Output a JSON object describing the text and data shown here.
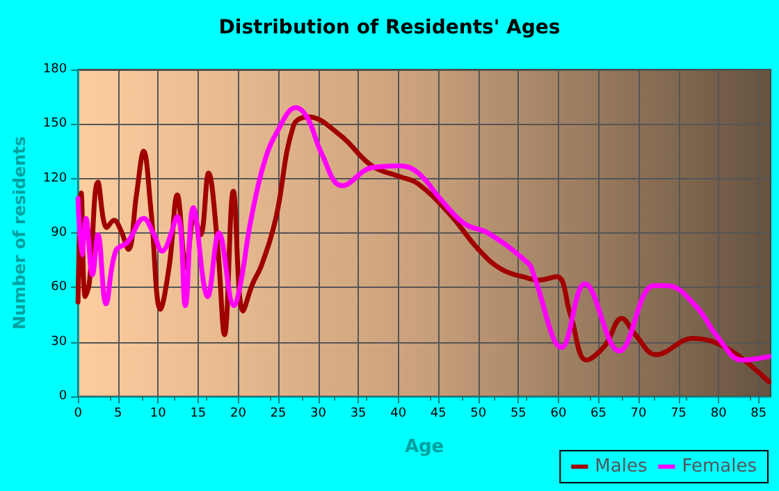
{
  "chart_data": {
    "type": "line",
    "title": "Distribution of Residents' Ages",
    "xlabel": "Age",
    "ylabel": "Number of residents",
    "xlim": [
      0,
      86.5
    ],
    "xticks": [
      0,
      5,
      10,
      15,
      20,
      25,
      30,
      35,
      40,
      45,
      50,
      55,
      60,
      65,
      70,
      75,
      80,
      85
    ],
    "ylim": [
      0,
      180
    ],
    "yticks": [
      0,
      30,
      60,
      90,
      120,
      150,
      180
    ],
    "grid": true,
    "legend": "bottom right",
    "series": [
      {
        "name": "Males",
        "color": "#a00000",
        "x": [
          0,
          0.4,
          0.9,
          1.4,
          2.5,
          3.6,
          4.5,
          5.3,
          6.3,
          7.3,
          8.2,
          9.1,
          10.3,
          11.4,
          12.4,
          13.5,
          14.5,
          15.3,
          16.3,
          17.4,
          18.3,
          19.4,
          20.6,
          21.8,
          22.9,
          24.7,
          26.9,
          28.7,
          32.7,
          36.7,
          40.2,
          42.5,
          46.5,
          50,
          52.9,
          56.3,
          57.5,
          59.8,
          61.5,
          63.5,
          65.8,
          67.9,
          69.6,
          72.2,
          76.8,
          79.4,
          82.3,
          86.3
        ],
        "values": [
          52,
          112,
          55,
          62,
          118,
          93,
          97,
          92,
          81,
          111,
          135,
          103,
          48,
          72,
          111,
          71,
          99,
          89,
          123,
          85,
          34,
          113,
          47,
          62,
          72,
          98,
          149,
          154,
          144,
          127,
          121,
          117,
          100,
          81,
          70,
          65,
          64,
          66,
          45,
          20,
          28,
          43,
          34,
          23,
          32,
          30,
          23,
          8
        ]
      },
      {
        "name": "Females",
        "color": "#ff00ff",
        "x": [
          0,
          0.5,
          1,
          1.8,
          2.5,
          3.5,
          4.7,
          6.2,
          8.2,
          9.4,
          10.5,
          12.4,
          13.4,
          14.4,
          16.2,
          17.6,
          19.5,
          20.3,
          21.5,
          23.2,
          24.9,
          27.2,
          28.7,
          30.4,
          33,
          36.7,
          40.2,
          42.5,
          45.4,
          48.3,
          51.2,
          56.3,
          56.9,
          60.4,
          63.3,
          67.6,
          71.9,
          73.6,
          77.1,
          80,
          82.9,
          86.3
        ],
        "values": [
          109,
          78,
          98,
          67,
          89,
          51,
          80,
          85,
          98,
          90,
          80,
          99,
          50,
          104,
          55,
          90,
          50,
          62,
          95,
          128,
          146,
          159,
          153,
          134,
          116,
          126,
          127,
          123,
          108,
          95,
          90,
          73,
          67,
          27,
          62,
          25,
          61,
          61,
          50,
          32,
          20,
          22
        ]
      }
    ]
  }
}
